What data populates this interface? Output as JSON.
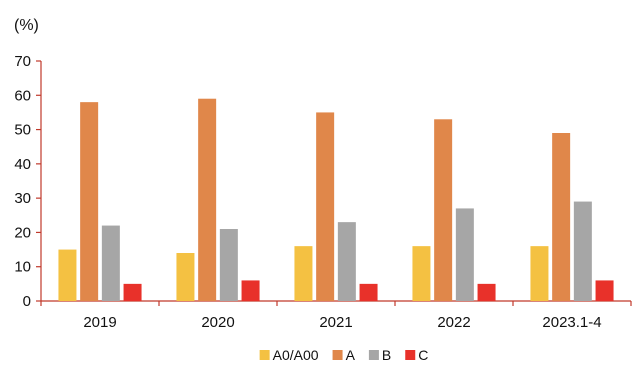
{
  "chart_data": {
    "type": "bar",
    "unit_label": "(%)",
    "categories": [
      "2019",
      "2020",
      "2021",
      "2022",
      "2023.1-4"
    ],
    "series": [
      {
        "name": "A0/A00",
        "color": "#F4C142",
        "values": [
          15,
          14,
          16,
          16,
          16
        ]
      },
      {
        "name": "A",
        "color": "#E0874A",
        "values": [
          58,
          59,
          55,
          53,
          49
        ]
      },
      {
        "name": "B",
        "color": "#A6A6A6",
        "values": [
          22,
          21,
          23,
          27,
          29
        ]
      },
      {
        "name": "C",
        "color": "#E8312A",
        "values": [
          5,
          6,
          5,
          5,
          6
        ]
      }
    ],
    "ylim": [
      0,
      70
    ],
    "yticks": [
      0,
      10,
      20,
      30,
      40,
      50,
      60,
      70
    ],
    "axis_color": "#C0392B",
    "grid": false,
    "legend_position": "bottom-center"
  }
}
